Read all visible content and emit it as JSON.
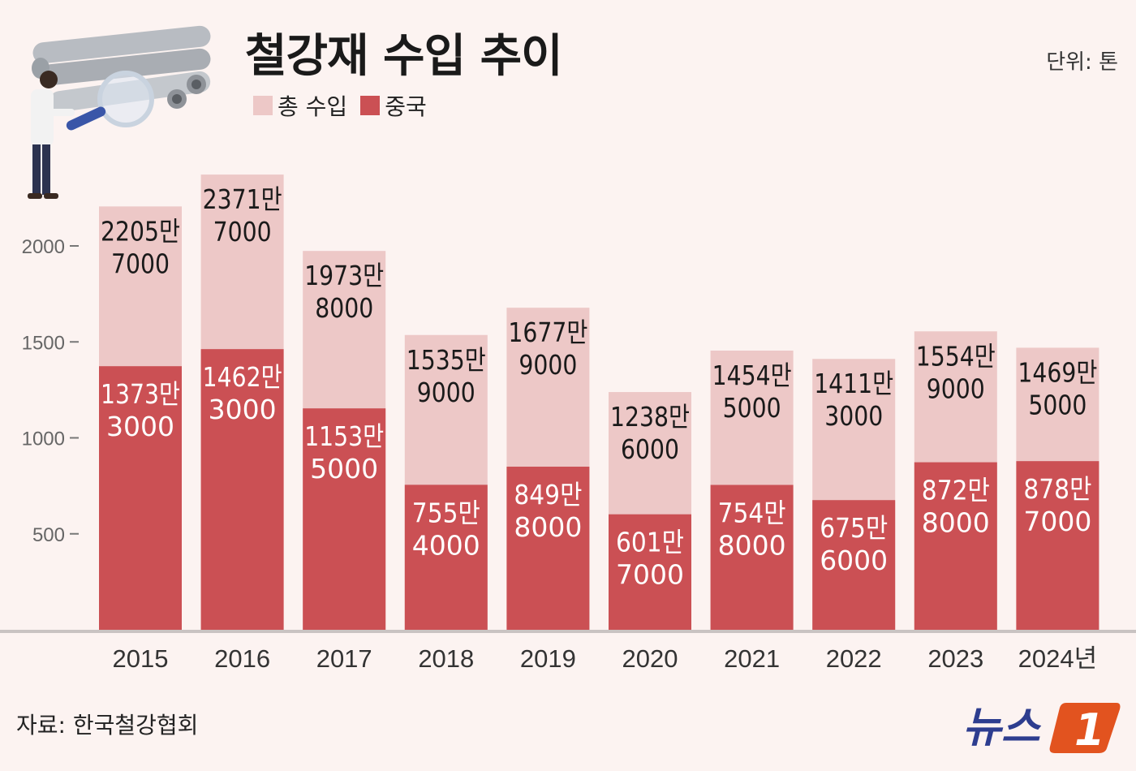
{
  "title": "철강재 수입 추이",
  "unit_label": "단위: 톤",
  "source": "자료: 한국철강협회",
  "logo_text": "뉴스1",
  "legend": [
    {
      "name": "총 수입",
      "color": "#edc8c7"
    },
    {
      "name": "중국",
      "color": "#cb5054"
    }
  ],
  "chart_data": {
    "type": "bar",
    "title": "철강재 수입 추이",
    "xlabel": "",
    "ylabel": "단위: 톤",
    "ylim": [
      0,
      2500
    ],
    "yticks": [
      500,
      1000,
      1500,
      2000
    ],
    "categories": [
      "2015",
      "2016",
      "2017",
      "2018",
      "2019",
      "2020",
      "2021",
      "2022",
      "2023",
      "2024년"
    ],
    "series": [
      {
        "name": "총 수입",
        "color": "#edc8c7",
        "values": [
          2205.7,
          2371.7,
          1973.8,
          1535.9,
          1677.9,
          1238.6,
          1454.5,
          1411.3,
          1554.9,
          1469.5
        ],
        "labels": [
          [
            "2205만",
            "7000"
          ],
          [
            "2371만",
            "7000"
          ],
          [
            "1973만",
            "8000"
          ],
          [
            "1535만",
            "9000"
          ],
          [
            "1677만",
            "9000"
          ],
          [
            "1238만",
            "6000"
          ],
          [
            "1454만",
            "5000"
          ],
          [
            "1411만",
            "3000"
          ],
          [
            "1554만",
            "9000"
          ],
          [
            "1469만",
            "5000"
          ]
        ]
      },
      {
        "name": "중국",
        "color": "#cb5054",
        "values": [
          1373.3,
          1462.3,
          1153.5,
          755.4,
          849.8,
          601.7,
          754.8,
          675.6,
          872.8,
          878.7
        ],
        "labels": [
          [
            "1373만",
            "3000"
          ],
          [
            "1462만",
            "3000"
          ],
          [
            "1153만",
            "5000"
          ],
          [
            "755만",
            "4000"
          ],
          [
            "849만",
            "8000"
          ],
          [
            "601만",
            "7000"
          ],
          [
            "754만",
            "8000"
          ],
          [
            "675만",
            "6000"
          ],
          [
            "872만",
            "8000"
          ],
          [
            "878만",
            "7000"
          ]
        ]
      }
    ]
  }
}
